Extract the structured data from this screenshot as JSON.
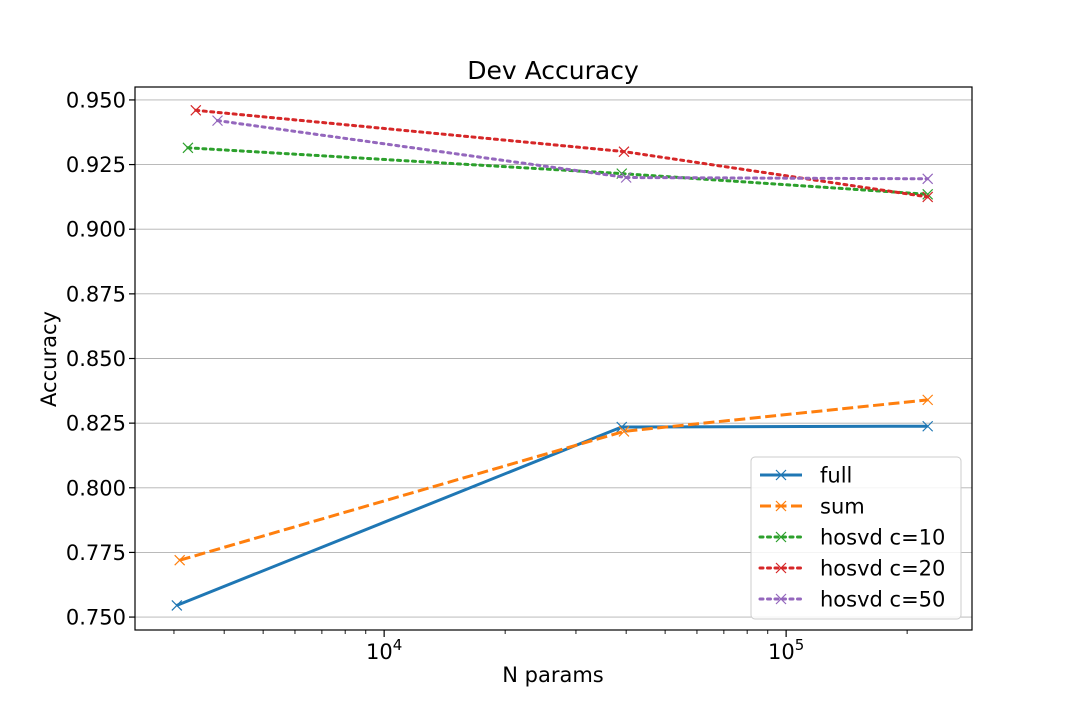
{
  "chart_data": {
    "type": "line",
    "title": "Dev Accuracy",
    "xlabel": "N params",
    "ylabel": "Accuracy",
    "xscale": "log",
    "xlim": [
      2400,
      290000
    ],
    "ylim": [
      0.745,
      0.955
    ],
    "yticks": [
      0.75,
      0.775,
      0.8,
      0.825,
      0.85,
      0.875,
      0.9,
      0.925,
      0.95
    ],
    "ytick_labels": [
      "0.750",
      "0.775",
      "0.800",
      "0.825",
      "0.850",
      "0.875",
      "0.900",
      "0.925",
      "0.950"
    ],
    "xticks": [
      {
        "value": 10000,
        "base": "10",
        "exp": "4"
      },
      {
        "value": 100000,
        "base": "10",
        "exp": "5"
      }
    ],
    "grid": "horizontal",
    "legend_position": "lower-right",
    "series": [
      {
        "name": "full",
        "color": "#1f77b4",
        "style": "solid",
        "x": [
          3050,
          39000,
          225000
        ],
        "y": [
          0.7545,
          0.8235,
          0.8238
        ]
      },
      {
        "name": "sum",
        "color": "#ff7f0e",
        "style": "dashed",
        "x": [
          3100,
          39500,
          225000
        ],
        "y": [
          0.772,
          0.8218,
          0.834
        ]
      },
      {
        "name": "hosvd c=10",
        "color": "#2ca02c",
        "style": "dotted",
        "x": [
          3250,
          39000,
          225000
        ],
        "y": [
          0.9315,
          0.9215,
          0.9135
        ]
      },
      {
        "name": "hosvd c=20",
        "color": "#d62728",
        "style": "dotted",
        "x": [
          3400,
          39500,
          225000
        ],
        "y": [
          0.946,
          0.93,
          0.9125
        ]
      },
      {
        "name": "hosvd c=50",
        "color": "#9467bd",
        "style": "dotted",
        "x": [
          3850,
          40000,
          225000
        ],
        "y": [
          0.942,
          0.92,
          0.9195
        ]
      }
    ]
  }
}
